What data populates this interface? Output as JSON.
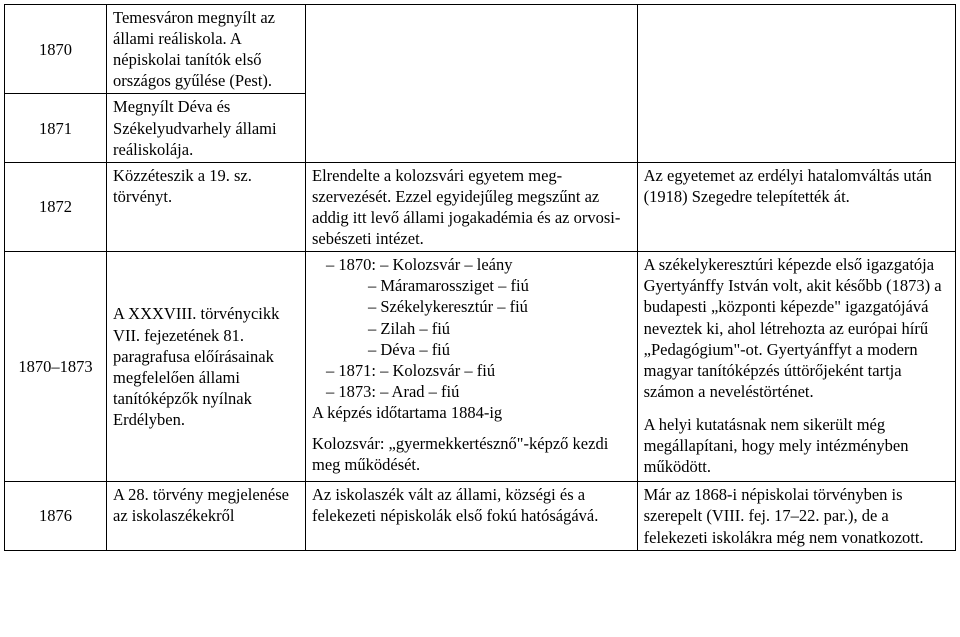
{
  "rows": [
    {
      "year": "1870",
      "c2": "Temesváron megnyílt az állami reáliskola. A népiskolai tanítók első országos gyűlése (Pest).",
      "c3": "",
      "c4": ""
    },
    {
      "year": "1871",
      "c2": "Megnyílt Déva és Székelyudvarhely állami reáliskolája.",
      "c3": "",
      "c4": ""
    },
    {
      "year": "1872",
      "c2": "Közzéteszik a 19. sz. törvényt.",
      "c3": "Elrendelte a kolozsvári egyetem meg­szervezését. Ezzel egyidejűleg meg­szűnt az addig itt levő állami jogaka­démia és az orvosi-sebészeti intézet.",
      "c4": "Az egyetemet az erdélyi hatalomváltás után (1918) Szegedre telepítették át."
    },
    {
      "year": "1870–1873",
      "c2": "A XXXVIII. törvény­cikk VII. fejezetének 81. paragrafusa előírá­sainak megfelelően állami tanítóképzők nyílnak Erdélyben.",
      "c3_lines": {
        "l1a": "– 1870: – Kolozsvár – leány",
        "l1b": "– Máramarossziget – fiú",
        "l1c": "– Székelykeresztúr – fiú",
        "l1d": "– Zilah – fiú",
        "l1e": "– Déva – fiú",
        "l2": "– 1871: – Kolozsvár – fiú",
        "l3": "– 1873: – Arad – fiú",
        "l4": "A képzés időtartama 1884-ig",
        "l5": "Kolozsvár: „gyermekkertésznő\"-képző kezdi meg működését."
      },
      "c4_p1": "A székelykeresztúri képezde első igaz­gatója Gyertyánffy István volt, akit később (1873) a budapesti „központi képezde\" igazgatójává neveztek ki, ahol létrehozta az európai hírű „Pedagógium\"-ot. Gyertyánffyt a modern magyar tanítóképzés úttörő­jeként tartja számon a neveléstörténet.",
      "c4_p2": "A helyi kutatásnak nem sikerült még megállapítani, hogy mely intézményben működött."
    },
    {
      "year": "1876",
      "c2": "A 28. törvény meg­jelenése az iskola­székekről",
      "c3": "Az iskolaszék vált az állami, községi és a felekezeti népiskolák első fokú ható­ságává.",
      "c4": "Már az 1868-i népiskolai törvényben is szerepelt (VIII. fej. 17–22. par.), de a felekezeti iskolákra még nem vonat­kozott."
    }
  ]
}
